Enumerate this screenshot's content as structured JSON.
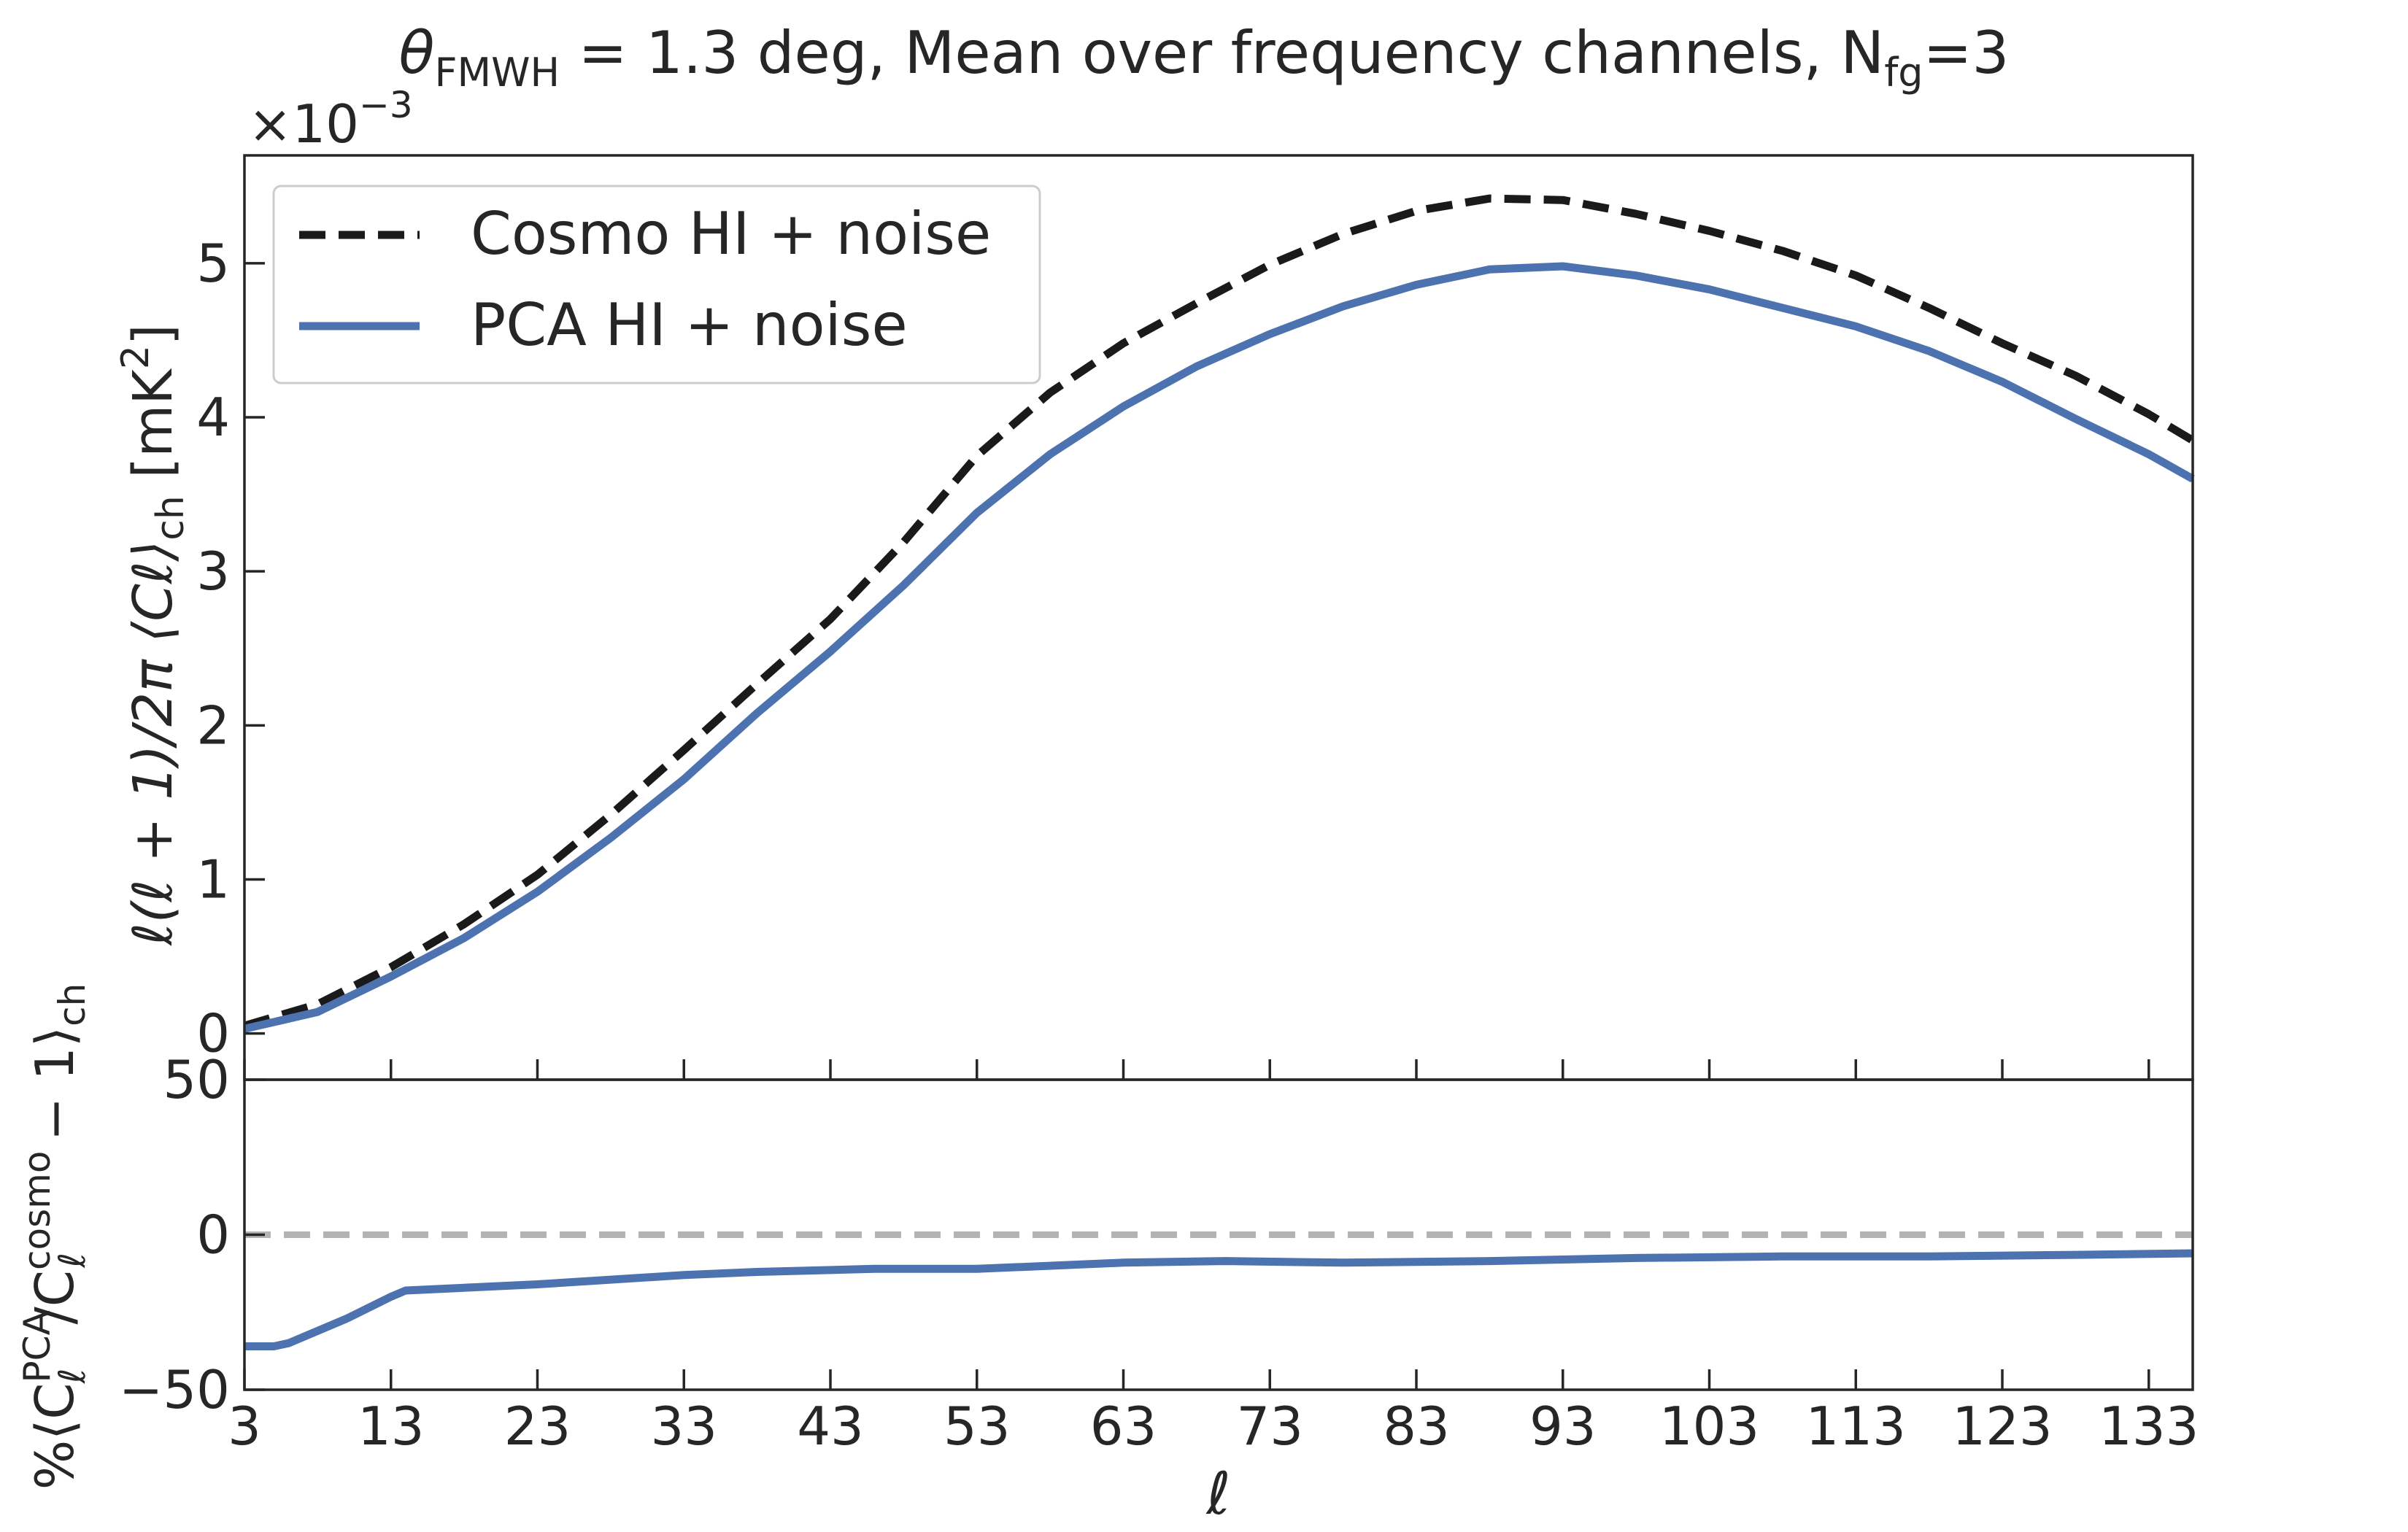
{
  "chart_data": [
    {
      "type": "line",
      "title": "θ_FMWH = 1.3 deg, Mean over frequency channels, N_fg=3",
      "title_parts": {
        "theta": "θ",
        "theta_sub": "FMWH",
        "rest": " = 1.3 deg, Mean over frequency channels, N",
        "n_sub": "fg",
        "n_rest": "=3"
      },
      "ylabel": "ℓ(ℓ + 1)/2π ⟨Cℓ⟩ch [mK²]",
      "ylabel_parts": {
        "main": "ℓ(ℓ + 1)/2π ⟨Cℓ⟩",
        "sub": "ch",
        "unit": " [mK",
        "sup": "2",
        "close": "]"
      },
      "offset_text": {
        "base": "×10",
        "exp": "−3"
      },
      "ylim": [
        -0.3,
        5.7
      ],
      "yticks": [
        0,
        1,
        2,
        3,
        4,
        5
      ],
      "ytick_labels": [
        "0",
        "1",
        "2",
        "3",
        "4",
        "5"
      ],
      "xlim": [
        3,
        136
      ],
      "legend_position": "upper-left",
      "series": [
        {
          "name": "Cosmo HI + noise",
          "style": "dashed",
          "color": "#1a1a1a",
          "x": [
            3,
            8,
            13,
            18,
            23,
            28,
            33,
            38,
            43,
            48,
            53,
            58,
            63,
            68,
            73,
            78,
            83,
            88,
            93,
            98,
            103,
            108,
            113,
            118,
            123,
            128,
            133,
            136
          ],
          "y": [
            0.05,
            0.19,
            0.43,
            0.71,
            1.03,
            1.42,
            1.84,
            2.27,
            2.69,
            3.19,
            3.75,
            4.16,
            4.48,
            4.74,
            4.99,
            5.19,
            5.34,
            5.42,
            5.41,
            5.32,
            5.21,
            5.08,
            4.92,
            4.71,
            4.48,
            4.27,
            4.02,
            3.85
          ]
        },
        {
          "name": "PCA HI + noise",
          "style": "solid",
          "color": "#4c72b0",
          "x": [
            3,
            8,
            13,
            18,
            23,
            28,
            33,
            38,
            43,
            48,
            53,
            58,
            63,
            68,
            73,
            78,
            83,
            88,
            93,
            98,
            103,
            108,
            113,
            118,
            123,
            128,
            133,
            136
          ],
          "y": [
            0.03,
            0.14,
            0.37,
            0.62,
            0.92,
            1.27,
            1.65,
            2.08,
            2.48,
            2.91,
            3.38,
            3.76,
            4.07,
            4.33,
            4.54,
            4.72,
            4.86,
            4.96,
            4.98,
            4.92,
            4.83,
            4.71,
            4.59,
            4.43,
            4.23,
            3.99,
            3.76,
            3.6
          ]
        }
      ]
    },
    {
      "type": "line",
      "xlabel": "ℓ",
      "ylabel": "%⟨Cℓ^PCA/Cℓ^cosmo − 1⟩ch",
      "ylabel_parts": {
        "pre": "%⟨C",
        "sup1": "PCA",
        "mid": "/C",
        "sup2": "cosmo",
        "post": " − 1⟩",
        "sub": "ch",
        "ell": "ℓ"
      },
      "ylim": [
        -50,
        50
      ],
      "yticks": [
        -50,
        0,
        50
      ],
      "ytick_labels": [
        "−50",
        "0",
        "50"
      ],
      "xlim": [
        3,
        136
      ],
      "xticks": [
        3,
        13,
        23,
        33,
        43,
        53,
        63,
        73,
        83,
        93,
        103,
        113,
        123,
        133
      ],
      "xtick_labels": [
        "3",
        "13",
        "23",
        "33",
        "43",
        "53",
        "63",
        "73",
        "83",
        "93",
        "103",
        "113",
        "123",
        "133"
      ],
      "reference_line": {
        "y": 0,
        "style": "dashed",
        "color": "#b3b3b3"
      },
      "series": [
        {
          "name": "PCA HI + noise",
          "style": "solid",
          "color": "#4c72b0",
          "x": [
            3,
            5,
            6,
            10,
            13,
            14,
            23,
            33,
            38,
            46,
            53,
            63,
            70,
            78,
            88,
            98,
            108,
            118,
            128,
            136
          ],
          "y": [
            -36,
            -36,
            -35,
            -27,
            -20,
            -18,
            -16,
            -13,
            -12,
            -11,
            -11,
            -9,
            -8.5,
            -9,
            -8.5,
            -7.5,
            -7,
            -7,
            -6.5,
            -6
          ]
        }
      ]
    }
  ]
}
